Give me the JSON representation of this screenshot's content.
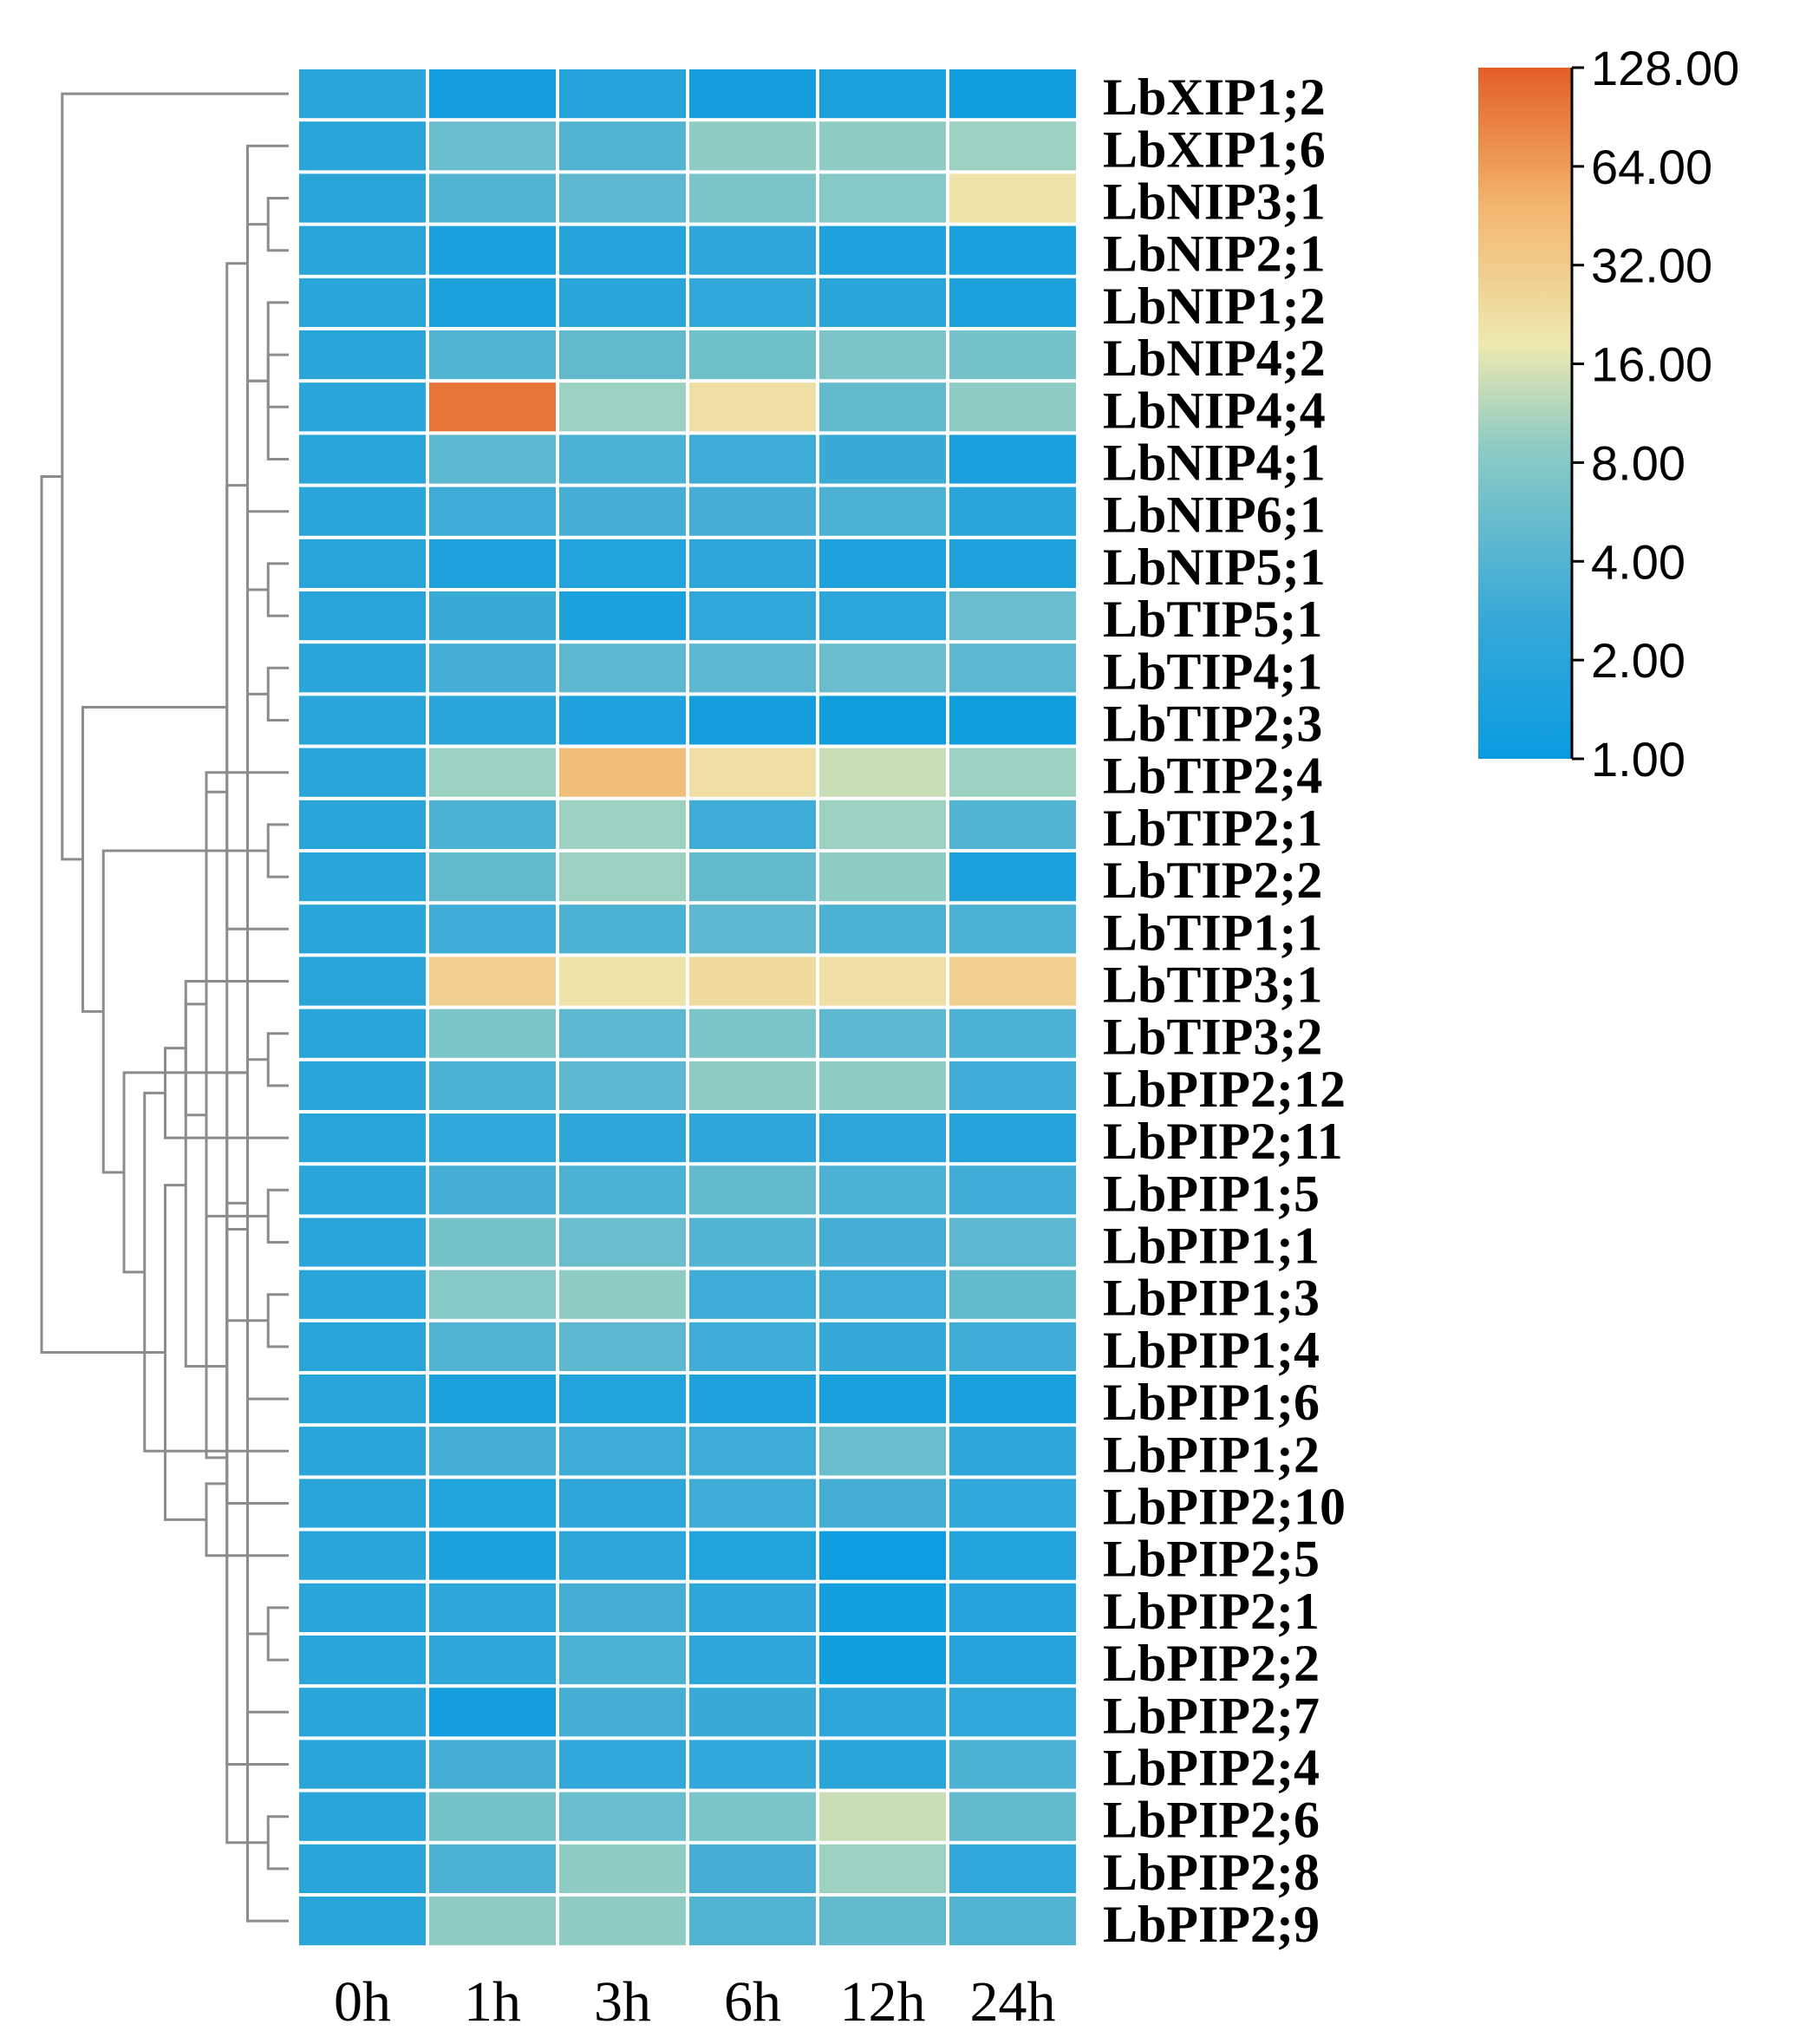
{
  "chart_data": {
    "type": "heatmap",
    "title": "",
    "columns": [
      "0h",
      "1h",
      "3h",
      "6h",
      "12h",
      "24h"
    ],
    "rows": [
      "LbXIP1;2",
      "LbXIP1;6",
      "LbNIP3;1",
      "LbNIP2;1",
      "LbNIP1;2",
      "LbNIP4;2",
      "LbNIP4;4",
      "LbNIP4;1",
      "LbNIP6;1",
      "LbNIP5;1",
      "LbTIP5;1",
      "LbTIP4;1",
      "LbTIP2;3",
      "LbTIP2;4",
      "LbTIP2;1",
      "LbTIP2;2",
      "LbTIP1;1",
      "LbTIP3;1",
      "LbTIP3;2",
      "LbPIP2;12",
      "LbPIP2;11",
      "LbPIP1;5",
      "LbPIP1;1",
      "LbPIP1;3",
      "LbPIP1;4",
      "LbPIP1;6",
      "LbPIP1;2",
      "LbPIP2;10",
      "LbPIP2;5",
      "LbPIP2;1",
      "LbPIP2;2",
      "LbPIP2;7",
      "LbPIP2;4",
      "LbPIP2;6",
      "LbPIP2;8",
      "LbPIP2;9"
    ],
    "values": [
      [
        2.0,
        1.3,
        1.8,
        1.3,
        1.5,
        1.2
      ],
      [
        2.0,
        5.5,
        4.0,
        9.0,
        9.0,
        10.0
      ],
      [
        2.0,
        4.0,
        4.5,
        7.0,
        8.0,
        20.0
      ],
      [
        2.0,
        1.4,
        1.8,
        2.2,
        1.6,
        1.4
      ],
      [
        2.0,
        1.5,
        2.0,
        2.4,
        2.0,
        1.5
      ],
      [
        2.0,
        4.0,
        5.0,
        6.0,
        7.0,
        6.5
      ],
      [
        2.0,
        100.0,
        10.0,
        22.0,
        5.0,
        9.0
      ],
      [
        2.0,
        4.5,
        3.6,
        3.0,
        2.8,
        1.4
      ],
      [
        2.0,
        3.0,
        3.3,
        3.3,
        3.6,
        2.0
      ],
      [
        2.0,
        1.6,
        1.7,
        2.2,
        1.6,
        1.6
      ],
      [
        2.0,
        2.8,
        1.5,
        2.4,
        2.1,
        5.5
      ],
      [
        2.0,
        3.2,
        4.5,
        4.5,
        5.5,
        4.5
      ],
      [
        2.0,
        2.0,
        1.6,
        1.3,
        1.15,
        1.15
      ],
      [
        2.0,
        10.0,
        40.0,
        22.0,
        14.0,
        10.0
      ],
      [
        2.0,
        3.6,
        10.0,
        3.0,
        10.0,
        4.0
      ],
      [
        2.0,
        5.0,
        10.0,
        5.0,
        9.0,
        1.5
      ],
      [
        2.0,
        3.0,
        3.6,
        4.5,
        3.6,
        3.6
      ],
      [
        2.0,
        30.0,
        20.0,
        24.0,
        22.0,
        30.0
      ],
      [
        2.0,
        7.0,
        4.5,
        7.0,
        4.5,
        3.6
      ],
      [
        2.0,
        3.6,
        4.5,
        9.0,
        9.0,
        3.0
      ],
      [
        2.0,
        2.4,
        2.2,
        2.2,
        2.2,
        1.8
      ],
      [
        2.0,
        3.3,
        3.6,
        5.0,
        3.6,
        3.0
      ],
      [
        2.0,
        6.5,
        5.5,
        4.0,
        3.3,
        4.5
      ],
      [
        2.0,
        8.0,
        9.0,
        3.0,
        3.0,
        5.0
      ],
      [
        2.0,
        4.0,
        4.5,
        3.0,
        2.6,
        3.0
      ],
      [
        2.0,
        1.5,
        1.7,
        1.6,
        1.4,
        1.4
      ],
      [
        2.0,
        3.3,
        3.0,
        3.0,
        5.5,
        2.2
      ],
      [
        2.0,
        1.7,
        2.2,
        3.0,
        3.3,
        2.4
      ],
      [
        2.0,
        1.5,
        2.2,
        1.7,
        1.1,
        1.7
      ],
      [
        2.0,
        2.2,
        3.3,
        2.2,
        1.25,
        1.8
      ],
      [
        2.0,
        2.2,
        3.6,
        2.2,
        1.15,
        1.8
      ],
      [
        2.0,
        1.3,
        3.3,
        2.8,
        2.2,
        2.4
      ],
      [
        2.0,
        3.3,
        2.4,
        2.4,
        2.0,
        3.6
      ],
      [
        2.0,
        6.5,
        5.5,
        7.0,
        14.0,
        5.0
      ],
      [
        2.0,
        3.6,
        9.0,
        3.3,
        10.0,
        2.4
      ],
      [
        2.0,
        9.0,
        9.0,
        4.0,
        5.0,
        4.0
      ]
    ],
    "dendrogram_merges": [
      [
        2,
        3
      ],
      [
        5,
        6
      ],
      [
        9,
        10
      ],
      [
        21,
        22
      ],
      [
        23,
        24
      ],
      [
        29,
        30
      ],
      [
        33,
        34
      ],
      [
        35,
        36
      ],
      [
        37,
        38
      ],
      [
        14,
        15
      ],
      [
        11,
        12
      ],
      [
        44,
        16
      ],
      [
        42,
        43
      ],
      [
        13,
        48
      ],
      [
        4,
        7
      ],
      [
        17,
        49
      ],
      [
        1,
        50
      ],
      [
        8,
        41
      ],
      [
        18,
        19
      ],
      [
        20,
        51
      ],
      [
        52,
        40
      ],
      [
        25,
        54
      ],
      [
        55,
        26
      ],
      [
        46,
        31
      ],
      [
        57,
        27
      ],
      [
        53,
        58
      ],
      [
        56,
        39
      ],
      [
        59,
        32
      ],
      [
        45,
        61
      ],
      [
        60,
        62
      ],
      [
        63,
        28
      ],
      [
        47,
        64
      ],
      [
        65,
        66
      ],
      [
        67,
        0
      ],
      [
        68,
        69
      ]
    ],
    "colorbar": {
      "scale": "log2",
      "min": 1.0,
      "max": 128.0,
      "tick_values": [
        128,
        64,
        32,
        16,
        8,
        4,
        2,
        1
      ],
      "tick_labels": [
        "128.00",
        "64.00",
        "32.00",
        "16.00",
        "8.00",
        "4.00",
        "2.00",
        "1.00"
      ],
      "colors": [
        "#0a9ce0",
        "#36a8d8",
        "#8ccbc4",
        "#eee9b0",
        "#f3b56e",
        "#e35f26"
      ]
    }
  }
}
